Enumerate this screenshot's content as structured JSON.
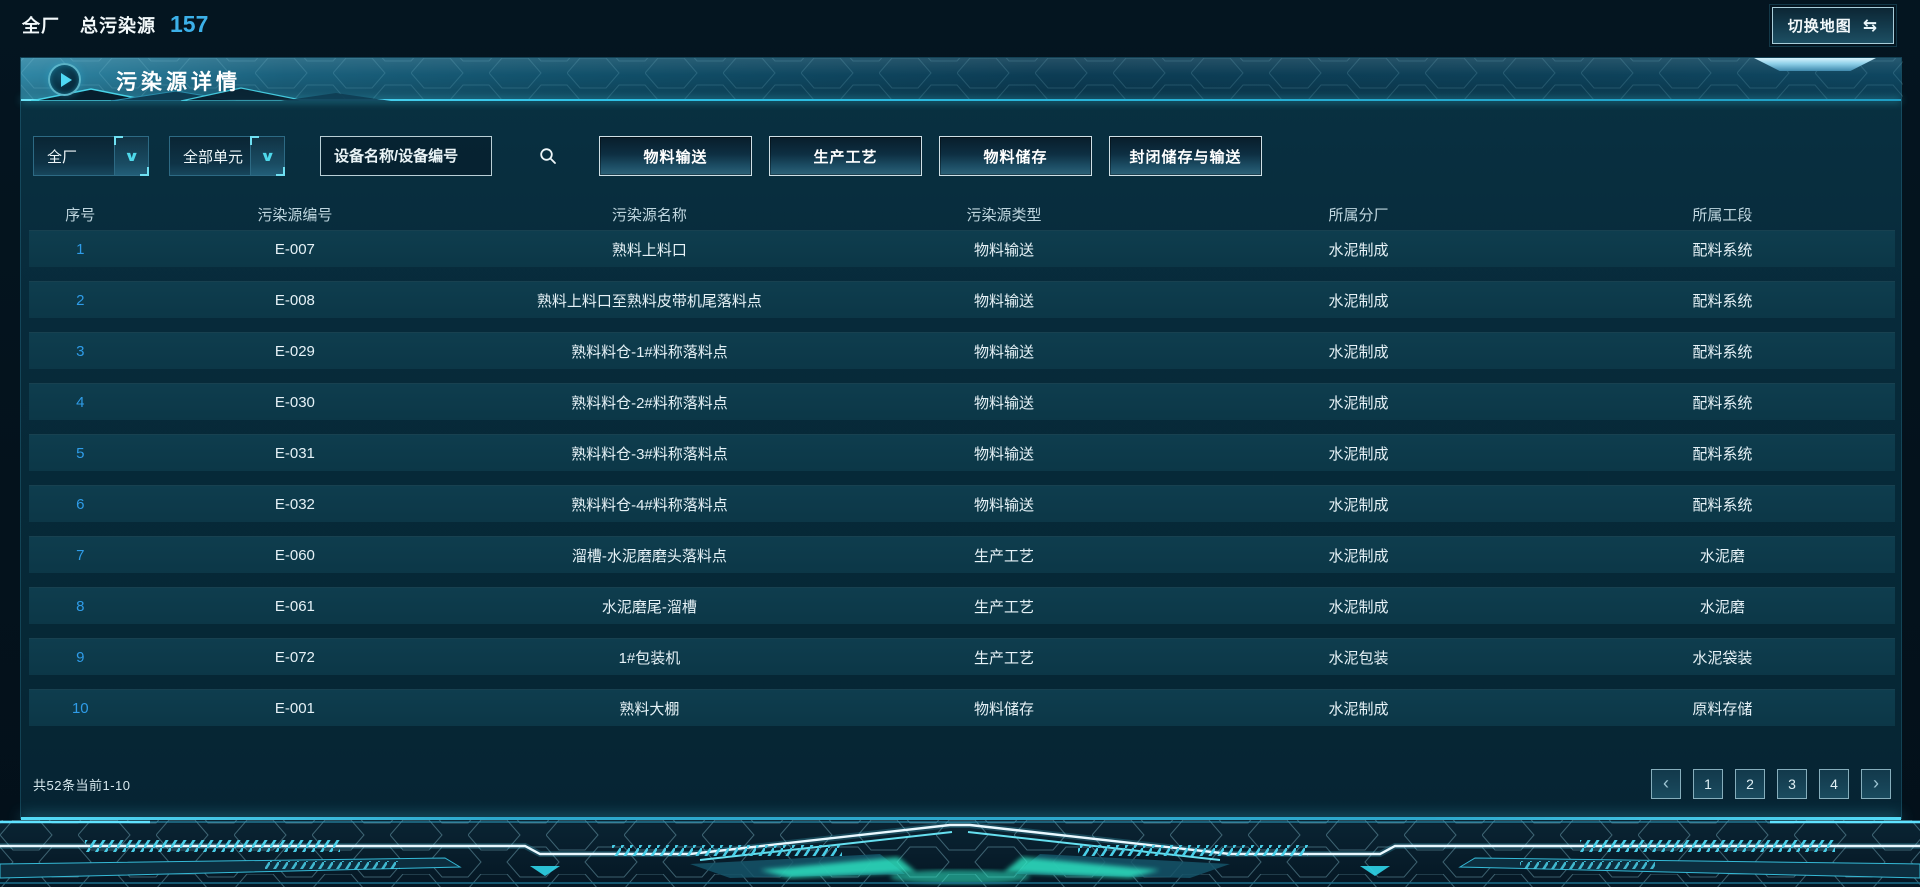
{
  "topbar": {
    "scope": "全厂",
    "total_label": "总污染源",
    "total_count": "157",
    "map_button": {
      "label": "切换地图",
      "icon_glyph": "⇆"
    }
  },
  "panel": {
    "title": "污染源详情",
    "filters": {
      "factory_dropdown": {
        "value": "全厂"
      },
      "unit_dropdown": {
        "value": "全部单元"
      },
      "search": {
        "placeholder": "设备名称/设备编号"
      },
      "type_buttons": [
        "物料输送",
        "生产工艺",
        "物料储存",
        "封闭储存与输送"
      ]
    },
    "table": {
      "columns": [
        "序号",
        "污染源编号",
        "污染源名称",
        "污染源类型",
        "所属分厂",
        "所属工段"
      ],
      "rows": [
        [
          "1",
          "E-007",
          "熟料上料口",
          "物料输送",
          "水泥制成",
          "配料系统"
        ],
        [
          "2",
          "E-008",
          "熟料上料口至熟料皮带机尾落料点",
          "物料输送",
          "水泥制成",
          "配料系统"
        ],
        [
          "3",
          "E-029",
          "熟料料仓-1#料称落料点",
          "物料输送",
          "水泥制成",
          "配料系统"
        ],
        [
          "4",
          "E-030",
          "熟料料仓-2#料称落料点",
          "物料输送",
          "水泥制成",
          "配料系统"
        ],
        [
          "5",
          "E-031",
          "熟料料仓-3#料称落料点",
          "物料输送",
          "水泥制成",
          "配料系统"
        ],
        [
          "6",
          "E-032",
          "熟料料仓-4#料称落料点",
          "物料输送",
          "水泥制成",
          "配料系统"
        ],
        [
          "7",
          "E-060",
          "溜槽-水泥磨磨头落料点",
          "生产工艺",
          "水泥制成",
          "水泥磨"
        ],
        [
          "8",
          "E-061",
          "水泥磨尾-溜槽",
          "生产工艺",
          "水泥制成",
          "水泥磨"
        ],
        [
          "9",
          "E-072",
          "1#包装机",
          "生产工艺",
          "水泥包装",
          "水泥袋装"
        ],
        [
          "10",
          "E-001",
          "熟料大棚",
          "物料储存",
          "水泥制成",
          "原料存储"
        ]
      ]
    },
    "pagination": {
      "summary": "共52条当前1-10",
      "prev_glyph": "‹",
      "next_glyph": "›",
      "pages": [
        "1",
        "2",
        "3",
        "4"
      ]
    }
  },
  "icons": {
    "panel_title_icon": "play",
    "dropdown_icon": "chevron-down",
    "dropdown_glyph": "∨",
    "search_icon": "magnifier",
    "map_icon": "swap-arrows"
  },
  "colors": {
    "accent_cyan": "#3fd2e8",
    "count_blue": "#3cb0e8",
    "row_index_blue": "#2f9ce8",
    "panel_bg": "#072a3a",
    "row_bg": "#0d3a4a",
    "header_gradient_left": "#2f86a4",
    "glow_green": "#2fe8c4"
  }
}
